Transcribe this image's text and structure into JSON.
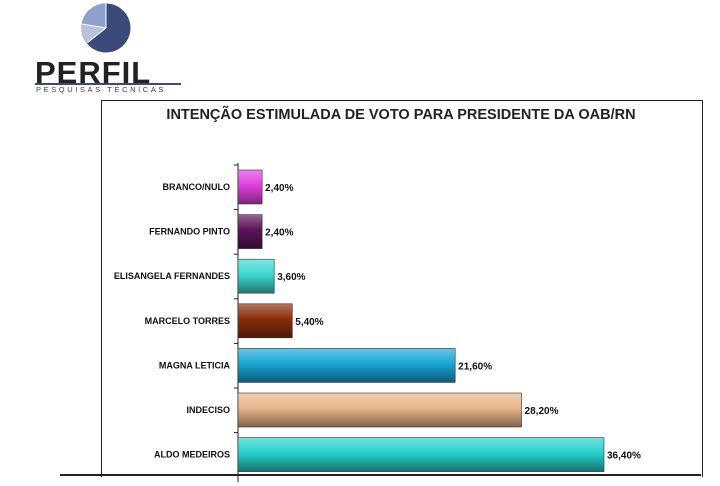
{
  "logo": {
    "name": "PERFIL",
    "tagline": "PESQUISAS TÉCNICAS",
    "colors": {
      "dark": "#3c4a7a",
      "light": "#7d8fbf",
      "lighter": "#b7c2df"
    }
  },
  "chart_data": {
    "type": "bar",
    "orientation": "horizontal",
    "title": "INTENÇÃO ESTIMULADA DE VOTO PARA PRESIDENTE DA OAB/RN",
    "categories": [
      "BRANCO/NULO",
      "FERNANDO PINTO",
      "ELISANGELA FERNANDES",
      "MARCELO TORRES",
      "MAGNA LETICIA",
      "INDECISO",
      "ALDO MEDEIROS"
    ],
    "values": [
      2.4,
      2.4,
      3.6,
      5.4,
      21.6,
      28.2,
      36.4
    ],
    "labels": [
      "2,40%",
      "2,40%",
      "3,60%",
      "5,40%",
      "21,60%",
      "28,20%",
      "36,40%"
    ],
    "colors": [
      "#e040e0",
      "#5a1458",
      "#3dd6d0",
      "#8a2e0c",
      "#1aa6d6",
      "#e8b48a",
      "#27d0cc"
    ],
    "xlim": [
      0,
      36.4
    ],
    "grid": false,
    "legend": "none"
  }
}
